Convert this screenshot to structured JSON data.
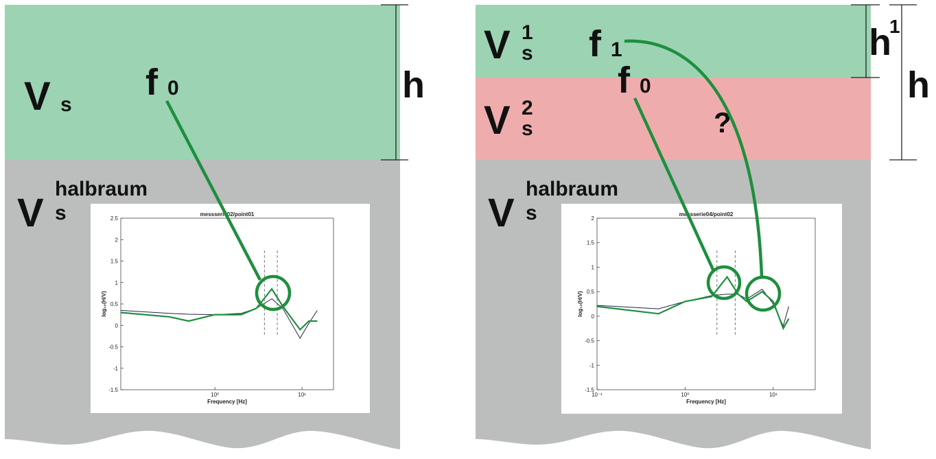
{
  "panels": [
    {
      "layer_top": {
        "symbol": "V",
        "sub": "s"
      },
      "freq": {
        "symbol": "f",
        "sub": "0"
      },
      "thickness": "h",
      "halfspace": {
        "symbol": "V",
        "sub": "s",
        "sup": "halbraum"
      },
      "plot": {
        "title": "messserie02/point01",
        "xlabel": "Frequency [Hz]",
        "ylabel": "log₁₀(H/V)",
        "xscale": "log",
        "xlim": [
          0.083,
          23
        ],
        "xticks": [
          {
            "value": 1,
            "label": "10⁰"
          },
          {
            "value": 10,
            "label": "10¹"
          }
        ],
        "ylim": [
          -1.5,
          2.5
        ],
        "yticks": [
          -1.5,
          -1,
          -0.5,
          0,
          0.5,
          1,
          1.5,
          2,
          2.5
        ],
        "markers": [
          3.7,
          5.2
        ],
        "x": [
          0.083,
          0.3,
          0.5,
          1,
          2,
          3,
          4.5,
          6,
          9.5,
          12,
          15
        ],
        "series": [
          {
            "color": "#222244",
            "values": [
              0.35,
              0.28,
              0.26,
              0.25,
              0.28,
              0.4,
              0.62,
              0.4,
              -0.3,
              0.05,
              0.35
            ]
          },
          {
            "color": "#1e8f3e",
            "values": [
              0.3,
              0.2,
              0.1,
              0.25,
              0.25,
              0.4,
              0.85,
              0.45,
              -0.1,
              0.1,
              0.1
            ]
          }
        ]
      }
    },
    {
      "layer1": {
        "symbol": "V",
        "sub": "s",
        "sup": "1"
      },
      "layer2": {
        "symbol": "V",
        "sub": "s",
        "sup": "2"
      },
      "freq1": {
        "symbol": "f",
        "sub": "1"
      },
      "freq0": {
        "symbol": "f",
        "sub": "0"
      },
      "question": "?",
      "thickness1": {
        "symbol": "h",
        "sup": "1"
      },
      "thickness": "h",
      "halfspace": {
        "symbol": "V",
        "sub": "s",
        "sup": "halbraum"
      },
      "plot": {
        "title": "messserie04/point02",
        "xlabel": "Frequency [Hz]",
        "ylabel": "log₁₀(H/V)",
        "xscale": "log",
        "xlim": [
          0.1,
          30
        ],
        "xticks": [
          {
            "value": 0.1,
            "label": "10⁻¹"
          },
          {
            "value": 1,
            "label": "10⁰"
          },
          {
            "value": 10,
            "label": "10¹"
          }
        ],
        "ylim": [
          -1.5,
          2
        ],
        "yticks": [
          -1.5,
          -1,
          -0.5,
          0,
          0.5,
          1,
          1.5,
          2
        ],
        "markers": [
          2.3,
          3.7
        ],
        "x": [
          0.1,
          0.5,
          1,
          2,
          3,
          4,
          5,
          7.5,
          10,
          13,
          15
        ],
        "series": [
          {
            "color": "#222244",
            "values": [
              0.22,
              0.15,
              0.3,
              0.42,
              0.45,
              0.45,
              0.35,
              0.55,
              0.25,
              -0.2,
              0.2
            ]
          },
          {
            "color": "#1e8f3e",
            "values": [
              0.2,
              0.05,
              0.3,
              0.4,
              0.8,
              0.45,
              0.3,
              0.5,
              0.3,
              -0.25,
              -0.05
            ]
          }
        ]
      }
    }
  ]
}
